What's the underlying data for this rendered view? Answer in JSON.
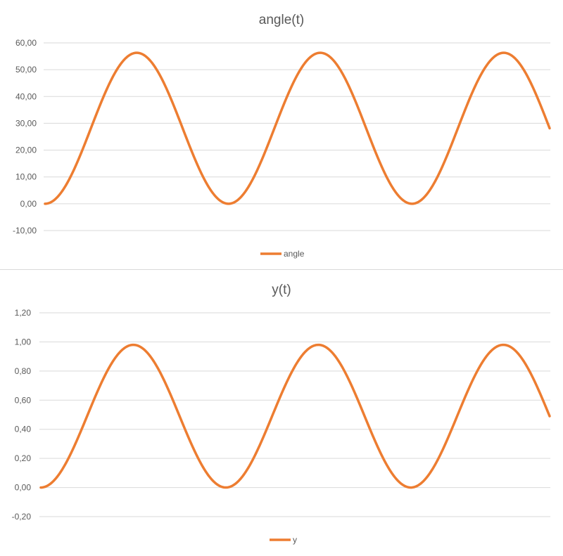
{
  "chart_data": [
    {
      "type": "line",
      "title": "angle(t)",
      "xlabel": "",
      "ylabel": "",
      "ylim": [
        -10,
        60
      ],
      "y_ticks": [
        "-10,00",
        "0,00",
        "10,00",
        "20,00",
        "30,00",
        "40,00",
        "50,00",
        "60,00"
      ],
      "y_tick_values": [
        -10,
        0,
        10,
        20,
        30,
        40,
        50,
        60
      ],
      "grid": true,
      "legend": "bottom",
      "series": [
        {
          "name": "angle",
          "color": "#ED7D31",
          "shape": "(1 - cos) oscillation, 2.75 cycles",
          "min": 0,
          "max": 56.3,
          "cycles": 2.75
        }
      ]
    },
    {
      "type": "line",
      "title": "y(t)",
      "xlabel": "",
      "ylabel": "",
      "ylim": [
        -0.2,
        1.2
      ],
      "y_ticks": [
        "-0,20",
        "0,00",
        "0,20",
        "0,40",
        "0,60",
        "0,80",
        "1,00",
        "1,20"
      ],
      "y_tick_values": [
        -0.2,
        0,
        0.2,
        0.4,
        0.6,
        0.8,
        1.0,
        1.2
      ],
      "grid": true,
      "legend": "bottom",
      "series": [
        {
          "name": "y",
          "color": "#ED7D31",
          "shape": "(1 - cos) oscillation, 2.75 cycles",
          "min": 0,
          "max": 0.98,
          "cycles": 2.75
        }
      ]
    }
  ]
}
